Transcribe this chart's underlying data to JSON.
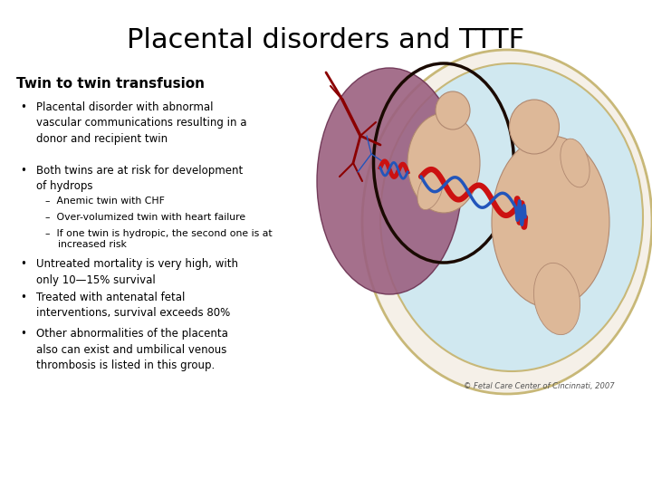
{
  "background_color": "#ffffff",
  "title": "Placental disorders and TTTF",
  "title_fontsize": 22,
  "title_color": "#000000",
  "subtitle": "Twin to twin transfusion",
  "subtitle_fontsize": 11,
  "bullet_points": [
    "Placental disorder with abnormal\nvascular communications resulting in a\ndonor and recipient twin",
    "Both twins are at risk for development\nof hydrops"
  ],
  "sub_bullets": [
    "–  Anemic twin with CHF",
    "–  Over-volumized twin with heart failure",
    "–  If one twin is hydropic, the second one is at\n    increased risk"
  ],
  "lower_bullets": [
    "Untreated mortality is very high, with\nonly 10—15% survival",
    "Treated with antenatal fetal\ninterventions, survival exceeds 80%",
    "Other abnormalities of the placenta\nalso can exist and umbilical venous\nthrombosis is listed in this group."
  ],
  "text_color": "#000000",
  "bullet_fontsize": 8.5,
  "sub_bullet_fontsize": 7.8,
  "image_caption": "© Fetal Care Center of Cincinnati, 2007",
  "caption_fontsize": 6,
  "caption_color": "#555555",
  "uterus_bg": "#d0e8f0",
  "uterus_edge": "#c8b878",
  "placenta_fill": "#9b6080",
  "placenta_edge": "#6a3050",
  "membrane_edge": "#1a0a00",
  "twin_skin": "#ddb898",
  "twin_edge": "#b08870",
  "vessel_red": "#cc1111",
  "vessel_blue": "#2255bb",
  "vessel_dark_red": "#8b0000"
}
